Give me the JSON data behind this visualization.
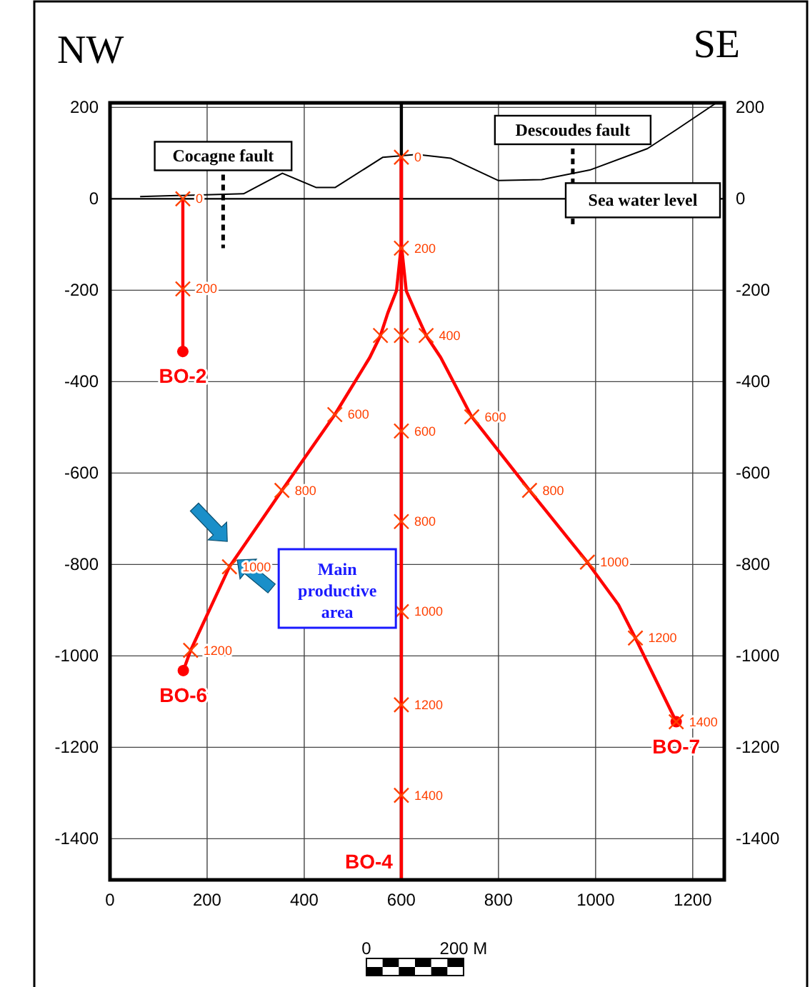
{
  "chart_data": {
    "type": "line",
    "xlim": [
      0,
      1265
    ],
    "ylim": [
      -1490,
      210
    ],
    "xticks": [
      0,
      200,
      400,
      600,
      800,
      1000,
      1200
    ],
    "yticks": [
      200,
      0,
      -200,
      -400,
      -600,
      -800,
      -1000,
      -1200,
      -1400
    ],
    "y2lim": [
      -1490,
      210
    ],
    "y2ticks": [
      200,
      0,
      -200,
      -400,
      -600,
      -800,
      -1000,
      -1200,
      -1400
    ],
    "grid": true,
    "ref_lines": [
      {
        "axis": "x",
        "value": 600,
        "color": "#000000"
      },
      {
        "axis": "y",
        "value": 0,
        "label": "Sea water level",
        "color": "#000000"
      }
    ],
    "series": [
      {
        "color": "#000000",
        "x": [
          62,
          275,
          355,
          424,
          464,
          562,
          632,
          701,
          800,
          889,
          988,
          1107,
          1166,
          1246
        ],
        "values": [
          5,
          11,
          56,
          25,
          25,
          91,
          97,
          89,
          40,
          42,
          63,
          110,
          151,
          208
        ]
      },
      {
        "name": "Cocagne fault",
        "color": "#000000",
        "line_style": "dashed",
        "x": [
          233,
          233
        ],
        "values": [
          53,
          -108
        ]
      },
      {
        "name": "Descoudes fault",
        "color": "#000000",
        "line_style": "dashed",
        "x": [
          953,
          953
        ],
        "values": [
          110,
          -61
        ]
      },
      {
        "name": "BO-2",
        "color": "#ff0000",
        "x": [
          150,
          150
        ],
        "values": [
          0,
          -334
        ]
      },
      {
        "name": "BO-4",
        "color": "#ff0000",
        "x": [
          600,
          600
        ],
        "values": [
          92,
          -1490
        ]
      },
      {
        "name": "BO-6",
        "color": "#ff0000",
        "x": [
          600,
          600,
          590,
          572,
          557,
          535,
          463,
          354,
          246,
          166,
          151
        ],
        "values": [
          92,
          -100,
          -201,
          -250,
          -299,
          -347,
          -472,
          -638,
          -805,
          -988,
          -1032
        ]
      },
      {
        "name": "BO-7",
        "color": "#ff0000",
        "x": [
          600,
          600,
          610,
          630,
          651,
          681,
          745,
          864,
          983,
          1047,
          1082,
          1166
        ],
        "values": [
          92,
          -100,
          -201,
          -250,
          -299,
          -347,
          -477,
          -638,
          -795,
          -888,
          -961,
          -1144
        ]
      },
      {
        "type": "scatter",
        "marker": "circle",
        "color": "#ff0000",
        "x": [
          150,
          151,
          1166
        ],
        "values": [
          -334,
          -1032,
          -1144
        ]
      },
      {
        "type": "scatter",
        "marker": "cross",
        "color": "#ff4000",
        "x": [
          150,
          150,
          600,
          600,
          600,
          600,
          600,
          600,
          600,
          600,
          557,
          463,
          354,
          246,
          166,
          651,
          745,
          864,
          983,
          1082,
          1166
        ],
        "values": [
          0,
          -197,
          91,
          -108,
          -299,
          -508,
          -706,
          -903,
          -1107,
          -1305,
          -299,
          -472,
          -638,
          -805,
          -988,
          -299,
          -477,
          -638,
          -795,
          -961,
          -1144
        ]
      }
    ],
    "annotations": [
      "NW",
      "SE",
      "0",
      "200 M",
      {
        "text": "0",
        "x": 150,
        "y": 0
      },
      {
        "text": "200",
        "x": 150,
        "y": -197
      },
      {
        "text": "0",
        "x": 600,
        "y": 91
      },
      {
        "text": "200",
        "x": 600,
        "y": -108
      },
      {
        "text": "600",
        "x": 600,
        "y": -508
      },
      {
        "text": "800",
        "x": 600,
        "y": -706
      },
      {
        "text": "1000",
        "x": 600,
        "y": -903
      },
      {
        "text": "1200",
        "x": 600,
        "y": -1107
      },
      {
        "text": "1400",
        "x": 600,
        "y": -1305
      },
      {
        "text": "600",
        "x": 463,
        "y": -472
      },
      {
        "text": "800",
        "x": 354,
        "y": -638
      },
      {
        "text": "1000",
        "x": 246,
        "y": -805
      },
      {
        "text": "1200",
        "x": 166,
        "y": -988
      },
      {
        "text": "400",
        "x": 651,
        "y": -299
      },
      {
        "text": "600",
        "x": 745,
        "y": -477
      },
      {
        "text": "800",
        "x": 864,
        "y": -638
      },
      {
        "text": "1000",
        "x": 983,
        "y": -795
      },
      {
        "text": "1200",
        "x": 1082,
        "y": -961
      },
      {
        "text": "1400",
        "x": 1166,
        "y": -1144
      },
      "Main productive area"
    ]
  }
}
